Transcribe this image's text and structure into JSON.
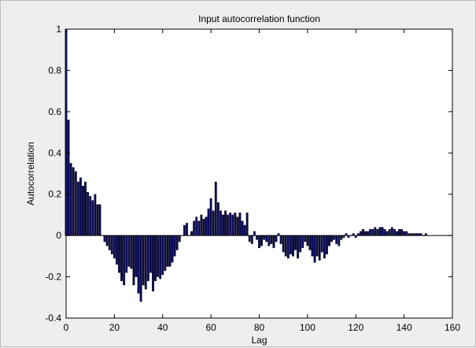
{
  "chart_data": {
    "type": "bar",
    "title": "Input autocorrelation function",
    "xlabel": "Lag",
    "ylabel": "Autocorrelation",
    "xlim": [
      0,
      160
    ],
    "ylim": [
      -0.4,
      1
    ],
    "xticks": [
      0,
      20,
      40,
      60,
      80,
      100,
      120,
      140,
      160
    ],
    "yticks": [
      -0.4,
      -0.2,
      0,
      0.2,
      0.4,
      0.6,
      0.8,
      1
    ],
    "ytick_labels": [
      "-0.4",
      "-0.2",
      "0",
      "0.2",
      "0.4",
      "0.6",
      "0.8",
      "1"
    ],
    "xtick_labels": [
      "0",
      "20",
      "40",
      "60",
      "80",
      "100",
      "120",
      "140",
      "160"
    ],
    "grid": false,
    "bar_color": "#0a0a5a",
    "lags": [
      0,
      1,
      2,
      3,
      4,
      5,
      6,
      7,
      8,
      9,
      10,
      11,
      12,
      13,
      14,
      15,
      16,
      17,
      18,
      19,
      20,
      21,
      22,
      23,
      24,
      25,
      26,
      27,
      28,
      29,
      30,
      31,
      32,
      33,
      34,
      35,
      36,
      37,
      38,
      39,
      40,
      41,
      42,
      43,
      44,
      45,
      46,
      47,
      48,
      49,
      50,
      51,
      52,
      53,
      54,
      55,
      56,
      57,
      58,
      59,
      60,
      61,
      62,
      63,
      64,
      65,
      66,
      67,
      68,
      69,
      70,
      71,
      72,
      73,
      74,
      75,
      76,
      77,
      78,
      79,
      80,
      81,
      82,
      83,
      84,
      85,
      86,
      87,
      88,
      89,
      90,
      91,
      92,
      93,
      94,
      95,
      96,
      97,
      98,
      99,
      100,
      101,
      102,
      103,
      104,
      105,
      106,
      107,
      108,
      109,
      110,
      111,
      112,
      113,
      114,
      115,
      116,
      117,
      118,
      119,
      120,
      121,
      122,
      123,
      124,
      125,
      126,
      127,
      128,
      129,
      130,
      131,
      132,
      133,
      134,
      135,
      136,
      137,
      138,
      139,
      140,
      141,
      142,
      143,
      144,
      145,
      146,
      147,
      148,
      149,
      150
    ],
    "values": [
      1.0,
      0.56,
      0.35,
      0.33,
      0.31,
      0.26,
      0.28,
      0.24,
      0.26,
      0.21,
      0.19,
      0.17,
      0.2,
      0.15,
      0.15,
      0.0,
      -0.03,
      -0.05,
      -0.07,
      -0.09,
      -0.11,
      -0.14,
      -0.18,
      -0.22,
      -0.24,
      -0.18,
      -0.15,
      -0.16,
      -0.24,
      -0.2,
      -0.28,
      -0.32,
      -0.24,
      -0.26,
      -0.22,
      -0.18,
      -0.27,
      -0.22,
      -0.2,
      -0.21,
      -0.19,
      -0.17,
      -0.15,
      -0.15,
      -0.13,
      -0.1,
      -0.07,
      -0.03,
      0.0,
      0.05,
      0.06,
      0.0,
      0.02,
      0.07,
      0.09,
      0.07,
      0.1,
      0.08,
      0.09,
      0.13,
      0.18,
      0.12,
      0.26,
      0.16,
      0.12,
      0.1,
      0.12,
      0.1,
      0.11,
      0.1,
      0.11,
      0.09,
      0.11,
      0.07,
      0.05,
      0.11,
      -0.03,
      -0.04,
      0.02,
      -0.02,
      -0.06,
      -0.05,
      -0.02,
      -0.03,
      -0.05,
      -0.04,
      -0.06,
      -0.03,
      0.01,
      -0.04,
      -0.08,
      -0.1,
      -0.11,
      -0.09,
      -0.1,
      -0.07,
      -0.11,
      -0.08,
      -0.06,
      -0.03,
      -0.05,
      -0.07,
      -0.1,
      -0.13,
      -0.1,
      -0.12,
      -0.08,
      -0.11,
      -0.09,
      -0.05,
      -0.03,
      -0.02,
      -0.04,
      -0.05,
      -0.02,
      -0.01,
      0.01,
      -0.01,
      0.0,
      0.01,
      -0.01,
      0.01,
      0.02,
      0.03,
      0.02,
      0.02,
      0.03,
      0.03,
      0.04,
      0.03,
      0.04,
      0.04,
      0.03,
      0.02,
      0.03,
      0.04,
      0.03,
      0.02,
      0.03,
      0.03,
      0.02,
      0.02,
      0.01,
      0.01,
      0.01,
      0.01,
      0.01,
      0.01,
      0.0,
      0.01,
      0.0
    ]
  }
}
